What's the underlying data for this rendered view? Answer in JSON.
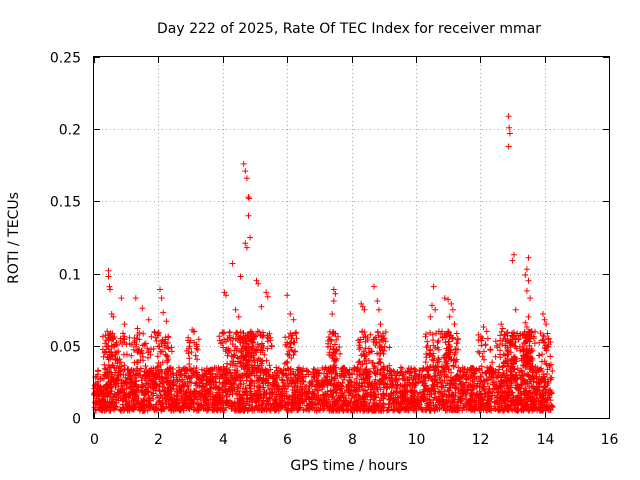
{
  "chart_data": {
    "type": "scatter",
    "title": "Day 222 of 2025, Rate Of TEC Index for receiver mmar",
    "xlabel": "GPS time / hours",
    "ylabel": "ROTI / TECUs",
    "xlim": [
      0,
      16
    ],
    "ylim": [
      0,
      0.25
    ],
    "xticks": [
      "0",
      "2",
      "4",
      "6",
      "8",
      "10",
      "12",
      "14",
      "16"
    ],
    "yticks": [
      "0",
      "0.05",
      "0.1",
      "0.15",
      "0.2",
      "0.25"
    ],
    "grid": true,
    "marker": "+",
    "series_color": "#ff0000",
    "data_coverage_hours": [
      0,
      14.25
    ],
    "baseline_band": [
      0.005,
      0.035
    ],
    "series": [
      {
        "name": "ROTI",
        "points": [
          [
            0.45,
            0.102
          ],
          [
            0.45,
            0.098
          ],
          [
            0.48,
            0.091
          ],
          [
            0.5,
            0.089
          ],
          [
            0.55,
            0.072
          ],
          [
            0.6,
            0.07
          ],
          [
            0.85,
            0.083
          ],
          [
            0.95,
            0.065
          ],
          [
            1.3,
            0.083
          ],
          [
            1.35,
            0.062
          ],
          [
            1.5,
            0.076
          ],
          [
            1.7,
            0.068
          ],
          [
            2.05,
            0.089
          ],
          [
            2.1,
            0.083
          ],
          [
            2.15,
            0.073
          ],
          [
            2.25,
            0.067
          ],
          [
            3.05,
            0.061
          ],
          [
            3.1,
            0.06
          ],
          [
            4.05,
            0.087
          ],
          [
            4.1,
            0.085
          ],
          [
            4.3,
            0.107
          ],
          [
            4.4,
            0.075
          ],
          [
            4.5,
            0.07
          ],
          [
            4.65,
            0.176
          ],
          [
            4.7,
            0.171
          ],
          [
            4.75,
            0.166
          ],
          [
            4.8,
            0.153
          ],
          [
            4.82,
            0.152
          ],
          [
            4.8,
            0.14
          ],
          [
            4.85,
            0.125
          ],
          [
            4.7,
            0.121
          ],
          [
            4.75,
            0.118
          ],
          [
            4.55,
            0.098
          ],
          [
            5.05,
            0.095
          ],
          [
            5.1,
            0.093
          ],
          [
            5.35,
            0.087
          ],
          [
            5.4,
            0.084
          ],
          [
            5.2,
            0.077
          ],
          [
            6.1,
            0.072
          ],
          [
            6.2,
            0.068
          ],
          [
            6.0,
            0.085
          ],
          [
            7.45,
            0.089
          ],
          [
            7.5,
            0.086
          ],
          [
            7.45,
            0.081
          ],
          [
            7.4,
            0.072
          ],
          [
            8.3,
            0.079
          ],
          [
            8.35,
            0.077
          ],
          [
            8.4,
            0.075
          ],
          [
            8.7,
            0.091
          ],
          [
            8.8,
            0.081
          ],
          [
            8.85,
            0.075
          ],
          [
            8.9,
            0.065
          ],
          [
            9.0,
            0.055
          ],
          [
            10.55,
            0.091
          ],
          [
            10.5,
            0.078
          ],
          [
            10.6,
            0.075
          ],
          [
            10.45,
            0.07
          ],
          [
            10.9,
            0.083
          ],
          [
            11.0,
            0.082
          ],
          [
            11.1,
            0.079
          ],
          [
            11.15,
            0.075
          ],
          [
            11.05,
            0.07
          ],
          [
            11.2,
            0.065
          ],
          [
            11.0,
            0.06
          ],
          [
            12.1,
            0.063
          ],
          [
            12.2,
            0.06
          ],
          [
            12.65,
            0.065
          ],
          [
            12.7,
            0.062
          ],
          [
            12.88,
            0.209
          ],
          [
            12.9,
            0.201
          ],
          [
            12.92,
            0.197
          ],
          [
            12.88,
            0.188
          ],
          [
            13.05,
            0.113
          ],
          [
            13.0,
            0.109
          ],
          [
            13.5,
            0.111
          ],
          [
            13.45,
            0.103
          ],
          [
            13.4,
            0.099
          ],
          [
            13.5,
            0.095
          ],
          [
            13.45,
            0.088
          ],
          [
            13.55,
            0.083
          ],
          [
            13.1,
            0.075
          ],
          [
            13.5,
            0.07
          ],
          [
            13.4,
            0.066
          ],
          [
            13.45,
            0.063
          ],
          [
            13.95,
            0.072
          ],
          [
            14.0,
            0.068
          ],
          [
            14.05,
            0.065
          ],
          [
            13.6,
            0.06
          ]
        ]
      }
    ]
  }
}
